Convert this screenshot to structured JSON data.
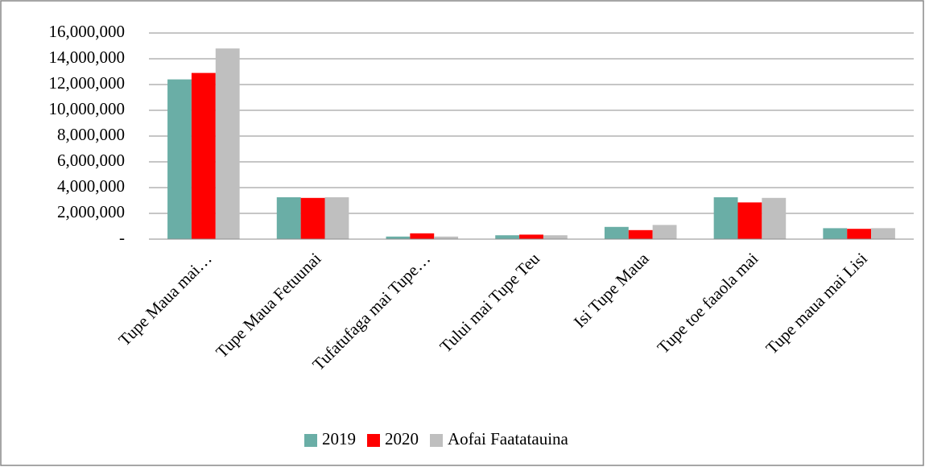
{
  "chart_data": {
    "type": "bar",
    "categories": [
      "Tupe Maua mai…",
      "Tupe Maua Fetuunai",
      "Tufatufaga mai Tupe…",
      "Tului mai Tupe Teu",
      "Isi Tupe Maua",
      "Tupe toe faaola mai",
      "Tupe maua mai Lisi"
    ],
    "series": [
      {
        "name": "2019",
        "color": "#6aaea6",
        "values": [
          12400000,
          3250000,
          200000,
          300000,
          950000,
          3250000,
          850000
        ]
      },
      {
        "name": "2020",
        "color": "#ff0000",
        "values": [
          12900000,
          3200000,
          450000,
          350000,
          700000,
          2850000,
          800000
        ]
      },
      {
        "name": "Aofai Faatatauina",
        "color": "#bfbfbf",
        "values": [
          14800000,
          3250000,
          200000,
          300000,
          1100000,
          3200000,
          850000
        ]
      }
    ],
    "ylim": [
      0,
      16000000
    ],
    "yticks": [
      {
        "value": 0,
        "label": "-"
      },
      {
        "value": 2000000,
        "label": "2,000,000"
      },
      {
        "value": 4000000,
        "label": "4,000,000"
      },
      {
        "value": 6000000,
        "label": "6,000,000"
      },
      {
        "value": 8000000,
        "label": "8,000,000"
      },
      {
        "value": 10000000,
        "label": "10,000,000"
      },
      {
        "value": 12000000,
        "label": "12,000,000"
      },
      {
        "value": 14000000,
        "label": "14,000,000"
      },
      {
        "value": 16000000,
        "label": "16,000,000"
      }
    ],
    "grid": true,
    "legend": "bottom"
  }
}
